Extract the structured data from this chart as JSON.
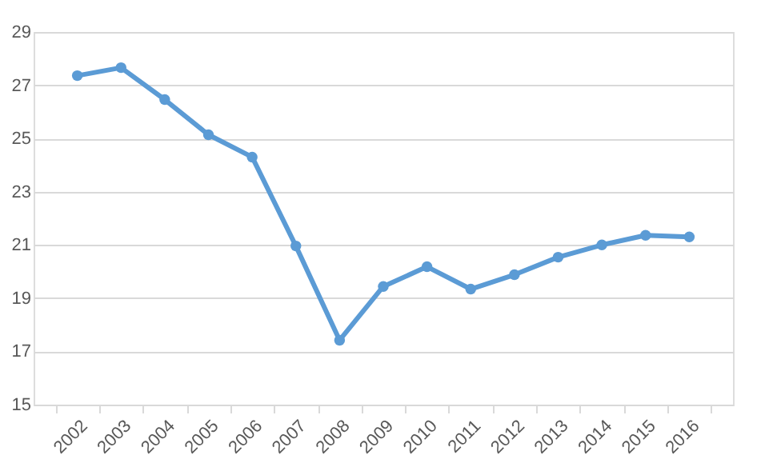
{
  "chart_data": {
    "type": "line",
    "categories": [
      "2002",
      "2003",
      "2004",
      "2005",
      "2006",
      "2007",
      "2008",
      "2009",
      "2010",
      "2011",
      "2012",
      "2013",
      "2014",
      "2015",
      "2016"
    ],
    "series": [
      {
        "color": "#5b9bd5",
        "values": [
          27.36,
          27.66,
          26.46,
          25.14,
          24.3,
          20.96,
          17.42,
          19.44,
          20.18,
          19.34,
          19.88,
          20.54,
          21.0,
          21.36,
          21.3
        ]
      }
    ],
    "ylim": [
      15,
      29
    ],
    "yticks": [
      15,
      17,
      19,
      21,
      23,
      25,
      27,
      29
    ],
    "grid": "y",
    "marker": "circle",
    "line_style": "solid"
  }
}
